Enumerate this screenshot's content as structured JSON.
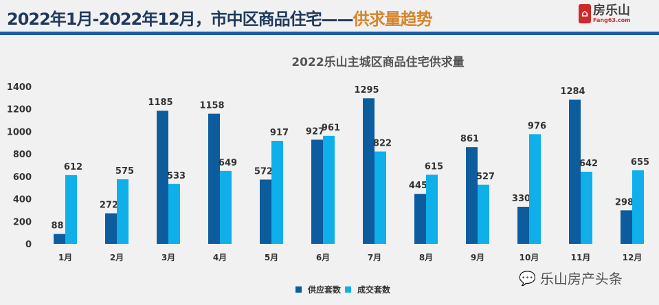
{
  "header": {
    "title_main": "2022年1月-2022年12月，市中区商品住宅——",
    "title_accent": "供求量趋势"
  },
  "logo": {
    "name": "房乐山",
    "url": "Fang63.com"
  },
  "watermark": "乐山房产头条",
  "colors": {
    "supply": "#0d5c9e",
    "deal": "#0fb0ea",
    "title": "#1f3a5c",
    "accent": "#d6852c"
  },
  "chart_data": {
    "type": "bar",
    "title": "2022乐山主城区商品住宅供求量",
    "categories": [
      "1月",
      "2月",
      "3月",
      "4月",
      "5月",
      "6月",
      "7月",
      "8月",
      "9月",
      "10月",
      "11月",
      "12月"
    ],
    "series": [
      {
        "name": "供应套数",
        "values": [
          88,
          272,
          1185,
          1158,
          572,
          927,
          1295,
          445,
          861,
          330,
          1284,
          298
        ]
      },
      {
        "name": "成交套数",
        "values": [
          612,
          575,
          533,
          649,
          917,
          961,
          822,
          615,
          527,
          976,
          642,
          655
        ]
      }
    ],
    "yticks": [
      0,
      200,
      400,
      600,
      800,
      1000,
      1200,
      1400
    ],
    "ylim": [
      0,
      1400
    ],
    "grid": false,
    "legend": "bottom"
  }
}
